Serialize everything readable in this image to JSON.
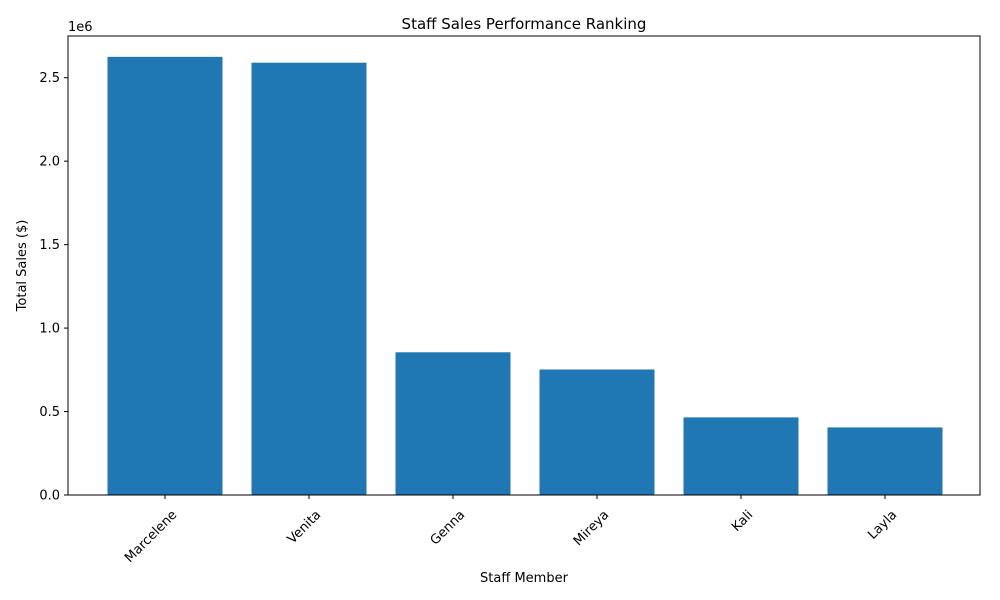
{
  "chart_data": {
    "type": "bar",
    "title": "Staff Sales Performance Ranking",
    "xlabel": "Staff Member",
    "ylabel": "Total Sales ($)",
    "offset_label": "1e6",
    "categories": [
      "Marcelene",
      "Venita",
      "Genna",
      "Mireya",
      "Kali",
      "Layla"
    ],
    "values": [
      2625000,
      2590000,
      855000,
      752000,
      465000,
      405000
    ],
    "ylim": [
      0,
      2750000
    ],
    "yticks": [
      0,
      500000,
      1000000,
      1500000,
      2000000,
      2500000
    ],
    "ytick_labels": [
      "0.0",
      "0.5",
      "1.0",
      "1.5",
      "2.0",
      "2.5"
    ],
    "bar_color": "#1f77b4",
    "grid": false,
    "legend": "none"
  }
}
